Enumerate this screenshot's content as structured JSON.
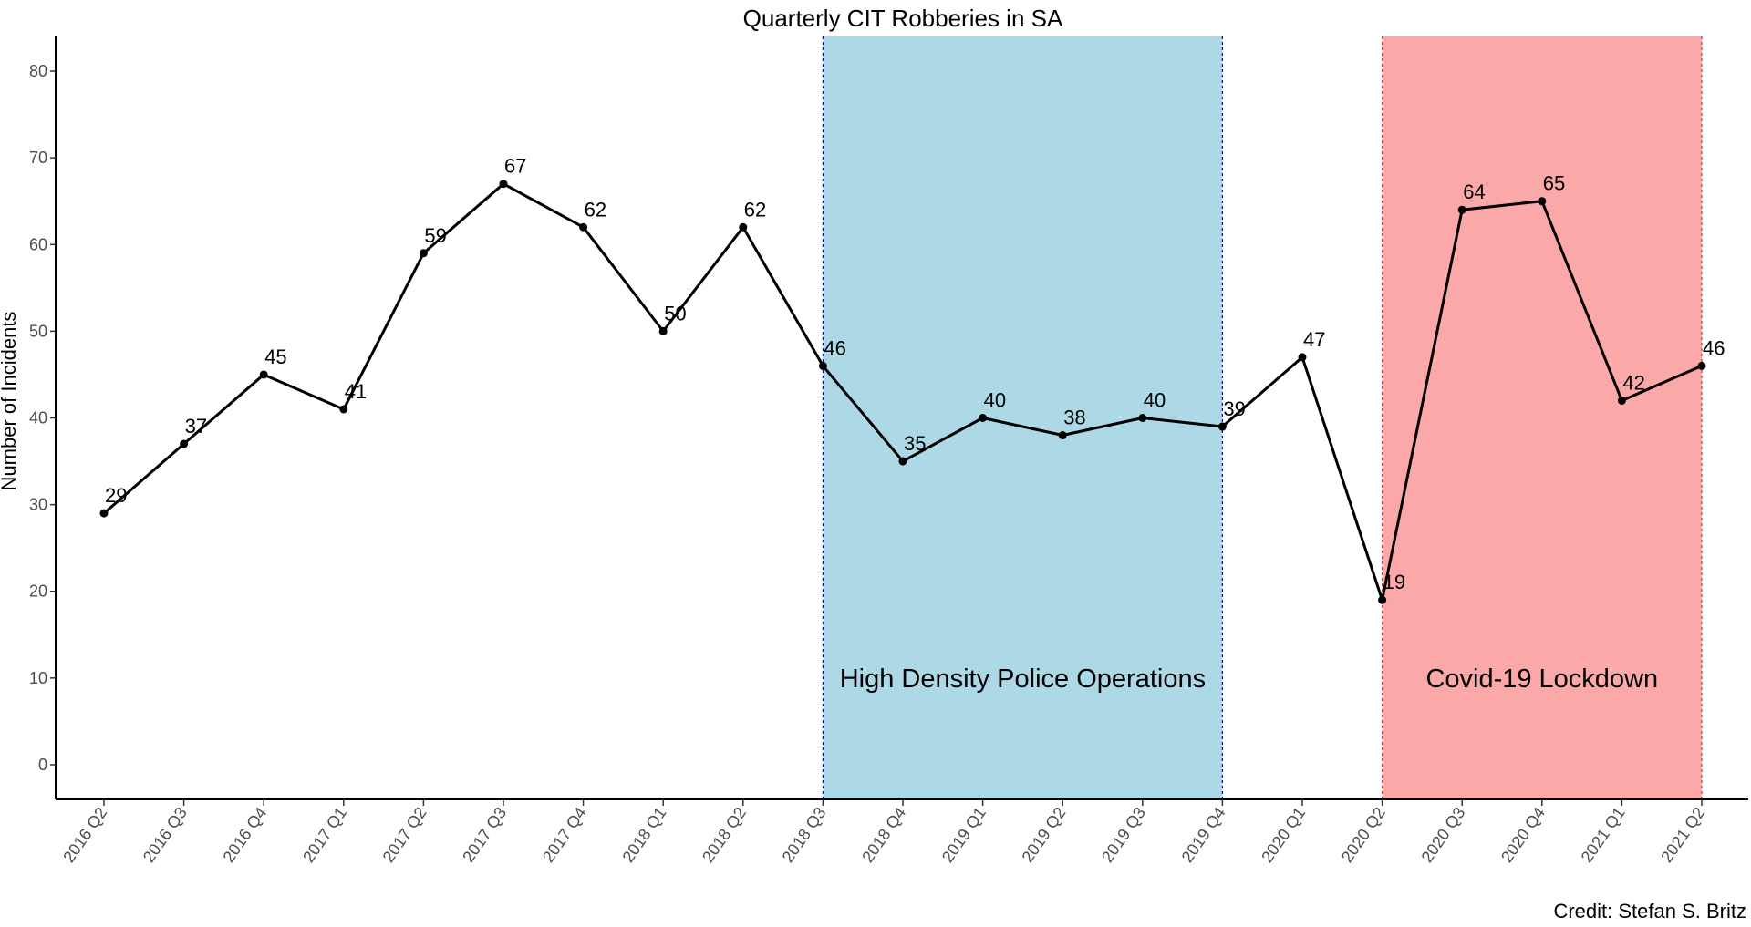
{
  "chart_data": {
    "type": "line",
    "title": "Quarterly CIT Robberies in SA",
    "xlabel": "",
    "ylabel": "Number of Incidents",
    "ylim": [
      -4,
      84
    ],
    "yticks": [
      0,
      10,
      20,
      30,
      40,
      50,
      60,
      70,
      80
    ],
    "categories": [
      "2016 Q2",
      "2016 Q3",
      "2016 Q4",
      "2017 Q1",
      "2017 Q2",
      "2017 Q3",
      "2017 Q4",
      "2018 Q1",
      "2018 Q2",
      "2018 Q3",
      "2018 Q4",
      "2019 Q1",
      "2019 Q2",
      "2019 Q3",
      "2019 Q4",
      "2020 Q1",
      "2020 Q2",
      "2020 Q3",
      "2020 Q4",
      "2021 Q1",
      "2021 Q2"
    ],
    "values": [
      29,
      37,
      45,
      41,
      59,
      67,
      62,
      50,
      62,
      46,
      35,
      40,
      38,
      40,
      39,
      47,
      19,
      64,
      65,
      42,
      46
    ],
    "line_color": "#000000",
    "grid": false,
    "shaded_regions": [
      {
        "label": "High Density Police Operations",
        "start": "2018 Q3",
        "end": "2019 Q4",
        "fill": "#ADD8E6",
        "edge": "#0000CD"
      },
      {
        "label": "Covid-19 Lockdown",
        "start": "2020 Q2",
        "end": "2021 Q2",
        "fill": "#FBA8A8",
        "edge": "#CD3333"
      }
    ],
    "caption": "Credit: Stefan S. Britz"
  }
}
